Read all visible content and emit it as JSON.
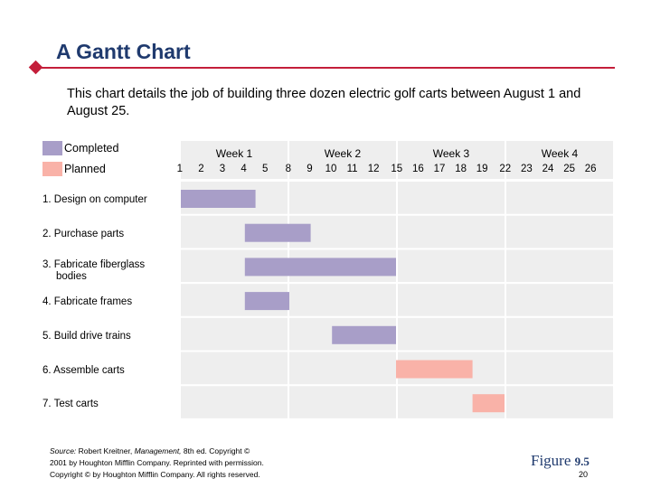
{
  "slide": {
    "title": "A Gantt Chart",
    "description": "This chart details the job of building three dozen electric golf carts between August 1 and August 25.",
    "source_label": "Source:",
    "source_line1_a": "Robert Kreitner, ",
    "source_line1_b": "Management,",
    "source_line1_c": " 8th ed. Copyright ©",
    "source_line2": "2001 by Houghton Mifflin Company. Reprinted with permission.",
    "source_line3": "Copyright © by Houghton Mifflin Company. All rights reserved.",
    "figure_word": "Figure",
    "figure_number": "9.5",
    "page_number": "20"
  },
  "colors": {
    "completed": "#a89ec8",
    "planned": "#f9b2a8",
    "grid_background": "#eeeeee",
    "title_rule": "#c41e3a",
    "title_text": "#1f3a6e"
  },
  "chart_data": {
    "type": "gantt",
    "legend": [
      {
        "label": "Completed",
        "status": "completed"
      },
      {
        "label": "Planned",
        "status": "planned"
      }
    ],
    "weeks": [
      {
        "label": "Week 1",
        "days": [
          1,
          2,
          3,
          4,
          5
        ]
      },
      {
        "label": "Week 2",
        "days": [
          8,
          9,
          10,
          11,
          12
        ]
      },
      {
        "label": "Week 3",
        "days": [
          15,
          16,
          17,
          18,
          19
        ]
      },
      {
        "label": "Week 4",
        "days": [
          22,
          23,
          24,
          25,
          26
        ]
      }
    ],
    "tasks": [
      {
        "label_lines": [
          "1. Design on computer"
        ],
        "start": 1,
        "end": 4.5,
        "status": "completed"
      },
      {
        "label_lines": [
          "2. Purchase parts"
        ],
        "start": 4,
        "end": 9,
        "status": "completed"
      },
      {
        "label_lines": [
          "3. Fabricate fiberglass",
          "bodies"
        ],
        "start": 4,
        "end": 13,
        "status": "completed"
      },
      {
        "label_lines": [
          "4. Fabricate frames"
        ],
        "start": 4,
        "end": 8,
        "status": "completed"
      },
      {
        "label_lines": [
          "5. Build drive trains"
        ],
        "start": 10,
        "end": 13,
        "status": "completed"
      },
      {
        "label_lines": [
          "6. Assemble carts"
        ],
        "start": 13,
        "end": 18.5,
        "status": "planned"
      },
      {
        "label_lines": [
          "7. Test carts"
        ],
        "start": 18.5,
        "end": 20,
        "status": "planned"
      }
    ]
  }
}
